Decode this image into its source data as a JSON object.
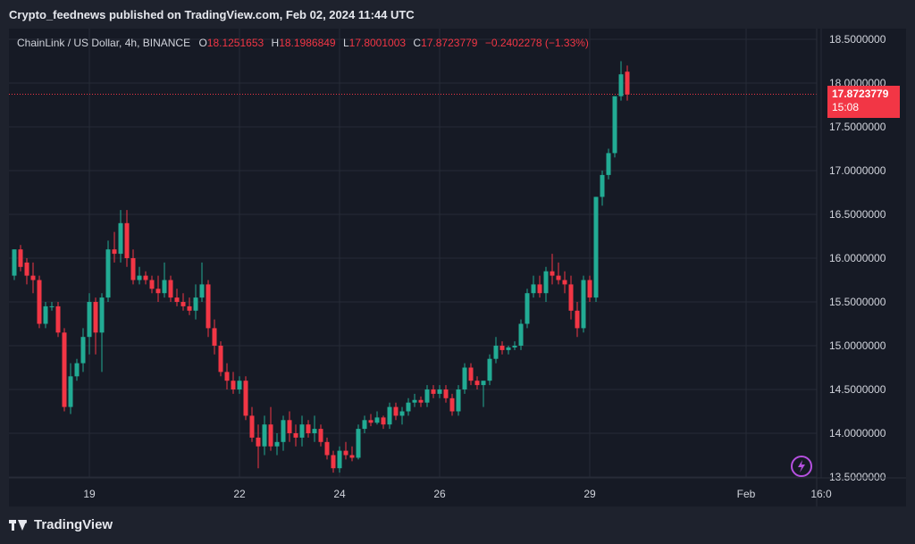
{
  "header": {
    "publisher_line": "Crypto_feednews published on TradingView.com, Feb 02, 2024 11:44 UTC"
  },
  "legend": {
    "symbol": "ChainLink / US Dollar, 4h, BINANCE",
    "open_label": "O",
    "open_value": "18.1251653",
    "high_label": "H",
    "high_value": "18.1986849",
    "low_label": "L",
    "low_value": "17.8001003",
    "close_label": "C",
    "close_value": "17.8723779",
    "change": "−0.2402278 (−1.33%)"
  },
  "price_tag": {
    "price": "17.8723779",
    "countdown": "15:08"
  },
  "footer": {
    "brand": "TradingView"
  },
  "colors": {
    "up": "#22ab94",
    "down": "#f23645",
    "background": "#161a25",
    "grid": "#262b37",
    "text": "#d1d4dc"
  },
  "icons": {
    "logo": "tradingview-logo-icon",
    "replay": "lightning-bolt-icon"
  },
  "chart_data": {
    "type": "candlestick",
    "ylim": [
      13.5,
      18.5
    ],
    "y_ticks": [
      "18.5000000",
      "18.0000000",
      "17.5000000",
      "17.0000000",
      "16.5000000",
      "16.0000000",
      "15.5000000",
      "15.0000000",
      "14.5000000",
      "14.0000000",
      "13.5000000"
    ],
    "x_ticks": [
      {
        "label": "19",
        "index": 12
      },
      {
        "label": "22",
        "index": 36
      },
      {
        "label": "24",
        "index": 52
      },
      {
        "label": "26",
        "index": 68
      },
      {
        "label": "29",
        "index": 92
      },
      {
        "label": "Feb",
        "index": 117
      },
      {
        "label": "16:0",
        "index": 129
      }
    ],
    "last_price": 17.8723779,
    "candles": [
      [
        15.8,
        16.1,
        15.75,
        16.1
      ],
      [
        16.1,
        16.15,
        15.85,
        15.9
      ],
      [
        15.95,
        16.0,
        15.7,
        15.8
      ],
      [
        15.8,
        15.95,
        15.6,
        15.75
      ],
      [
        15.75,
        15.8,
        15.2,
        15.25
      ],
      [
        15.25,
        15.5,
        15.2,
        15.45
      ],
      [
        15.45,
        15.5,
        15.4,
        15.45
      ],
      [
        15.45,
        15.5,
        15.1,
        15.15
      ],
      [
        15.15,
        15.2,
        14.25,
        14.3
      ],
      [
        14.3,
        14.8,
        14.22,
        14.65
      ],
      [
        14.65,
        14.85,
        14.6,
        14.8
      ],
      [
        14.8,
        15.2,
        14.7,
        15.1
      ],
      [
        15.1,
        15.6,
        14.9,
        15.5
      ],
      [
        15.5,
        15.55,
        14.9,
        15.15
      ],
      [
        15.15,
        15.6,
        14.7,
        15.55
      ],
      [
        15.55,
        16.2,
        15.5,
        16.1
      ],
      [
        16.1,
        16.3,
        15.95,
        16.05
      ],
      [
        16.05,
        16.55,
        15.95,
        16.4
      ],
      [
        16.4,
        16.55,
        15.9,
        16.0
      ],
      [
        16.0,
        16.1,
        15.7,
        15.75
      ],
      [
        15.75,
        15.9,
        15.7,
        15.8
      ],
      [
        15.8,
        15.85,
        15.7,
        15.75
      ],
      [
        15.75,
        15.8,
        15.6,
        15.65
      ],
      [
        15.65,
        15.8,
        15.5,
        15.6
      ],
      [
        15.6,
        15.95,
        15.55,
        15.75
      ],
      [
        15.75,
        15.8,
        15.5,
        15.55
      ],
      [
        15.55,
        15.65,
        15.45,
        15.5
      ],
      [
        15.5,
        15.6,
        15.4,
        15.45
      ],
      [
        15.45,
        15.55,
        15.35,
        15.4
      ],
      [
        15.4,
        15.7,
        15.3,
        15.55
      ],
      [
        15.55,
        15.95,
        15.5,
        15.7
      ],
      [
        15.7,
        15.75,
        15.1,
        15.2
      ],
      [
        15.2,
        15.3,
        14.9,
        15.0
      ],
      [
        15.0,
        15.05,
        14.65,
        14.7
      ],
      [
        14.7,
        14.8,
        14.5,
        14.6
      ],
      [
        14.6,
        14.7,
        14.45,
        14.5
      ],
      [
        14.5,
        14.65,
        14.45,
        14.6
      ],
      [
        14.6,
        14.65,
        14.15,
        14.2
      ],
      [
        14.2,
        14.3,
        13.9,
        13.95
      ],
      [
        13.95,
        14.1,
        13.6,
        13.85
      ],
      [
        13.85,
        14.2,
        13.75,
        14.1
      ],
      [
        14.1,
        14.3,
        13.8,
        13.85
      ],
      [
        13.85,
        14.0,
        13.75,
        13.9
      ],
      [
        13.9,
        14.2,
        13.8,
        14.15
      ],
      [
        14.15,
        14.25,
        13.9,
        14.0
      ],
      [
        14.0,
        14.1,
        13.85,
        13.95
      ],
      [
        13.95,
        14.2,
        13.85,
        14.1
      ],
      [
        14.1,
        14.15,
        13.95,
        14.0
      ],
      [
        14.0,
        14.2,
        13.9,
        14.05
      ],
      [
        14.05,
        14.1,
        13.85,
        13.9
      ],
      [
        13.9,
        13.95,
        13.7,
        13.75
      ],
      [
        13.75,
        13.8,
        13.55,
        13.6
      ],
      [
        13.6,
        13.85,
        13.55,
        13.8
      ],
      [
        13.8,
        13.9,
        13.7,
        13.75
      ],
      [
        13.75,
        13.85,
        13.68,
        13.72
      ],
      [
        13.72,
        14.1,
        13.7,
        14.05
      ],
      [
        14.05,
        14.2,
        14.0,
        14.15
      ],
      [
        14.15,
        14.22,
        14.08,
        14.12
      ],
      [
        14.12,
        14.25,
        14.1,
        14.18
      ],
      [
        14.18,
        14.2,
        14.05,
        14.1
      ],
      [
        14.1,
        14.35,
        14.05,
        14.3
      ],
      [
        14.3,
        14.35,
        14.15,
        14.2
      ],
      [
        14.2,
        14.3,
        14.1,
        14.25
      ],
      [
        14.25,
        14.4,
        14.2,
        14.35
      ],
      [
        14.35,
        14.45,
        14.3,
        14.38
      ],
      [
        14.38,
        14.42,
        14.3,
        14.35
      ],
      [
        14.35,
        14.55,
        14.3,
        14.5
      ],
      [
        14.5,
        14.55,
        14.4,
        14.45
      ],
      [
        14.45,
        14.55,
        14.4,
        14.5
      ],
      [
        14.5,
        14.55,
        14.35,
        14.4
      ],
      [
        14.4,
        14.45,
        14.2,
        14.25
      ],
      [
        14.25,
        14.55,
        14.2,
        14.5
      ],
      [
        14.5,
        14.8,
        14.45,
        14.75
      ],
      [
        14.75,
        14.8,
        14.55,
        14.6
      ],
      [
        14.6,
        14.65,
        14.5,
        14.55
      ],
      [
        14.55,
        14.6,
        14.3,
        14.6
      ],
      [
        14.6,
        14.9,
        14.55,
        14.85
      ],
      [
        14.85,
        15.1,
        14.8,
        15.0
      ],
      [
        15.0,
        15.05,
        14.9,
        14.95
      ],
      [
        14.95,
        15.0,
        14.9,
        14.98
      ],
      [
        14.98,
        15.05,
        14.95,
        15.0
      ],
      [
        15.0,
        15.3,
        14.95,
        15.25
      ],
      [
        15.25,
        15.65,
        15.2,
        15.6
      ],
      [
        15.6,
        15.8,
        15.55,
        15.7
      ],
      [
        15.7,
        15.8,
        15.55,
        15.6
      ],
      [
        15.6,
        15.9,
        15.5,
        15.85
      ],
      [
        15.85,
        16.05,
        15.7,
        15.8
      ],
      [
        15.8,
        15.95,
        15.7,
        15.75
      ],
      [
        15.75,
        15.85,
        15.6,
        15.7
      ],
      [
        15.7,
        15.8,
        15.3,
        15.4
      ],
      [
        15.4,
        15.5,
        15.1,
        15.2
      ],
      [
        15.2,
        15.8,
        15.15,
        15.75
      ],
      [
        15.75,
        15.8,
        15.5,
        15.55
      ],
      [
        15.55,
        16.7,
        15.5,
        16.7
      ],
      [
        16.7,
        17.0,
        16.6,
        16.95
      ],
      [
        16.95,
        17.25,
        16.9,
        17.2
      ],
      [
        17.2,
        17.85,
        17.15,
        17.85
      ],
      [
        17.85,
        18.25,
        17.8,
        18.1
      ],
      [
        18.13,
        18.2,
        17.8,
        17.87
      ]
    ]
  }
}
